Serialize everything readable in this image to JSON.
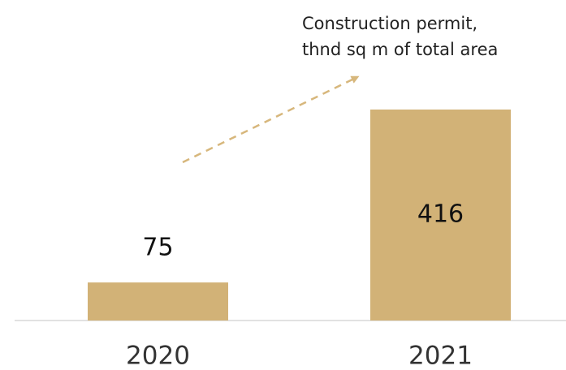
{
  "chart_data": {
    "type": "bar",
    "title": [
      "Construction permit,",
      "thnd sq m of total area"
    ],
    "categories": [
      "2020",
      "2021"
    ],
    "values": [
      75,
      416
    ],
    "color": "#d2b277"
  }
}
